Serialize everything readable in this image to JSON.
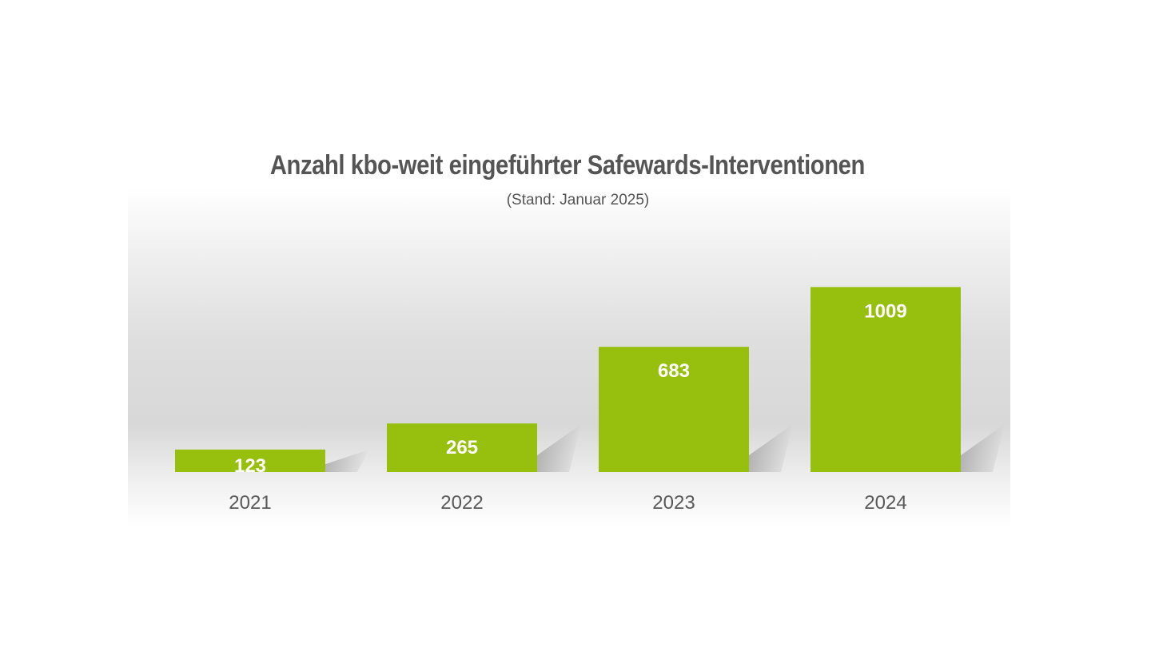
{
  "chart_data": {
    "type": "bar",
    "title": "Anzahl kbo-weit eingeführter Safewards-Interventionen",
    "subtitle": "(Stand: Januar 2025)",
    "categories": [
      "2021",
      "2022",
      "2023",
      "2024"
    ],
    "values": [
      123,
      265,
      683,
      1009
    ],
    "xlabel": "",
    "ylabel": "",
    "ylim": [
      0,
      1150
    ],
    "grid": false,
    "legend": "none",
    "bar_color": "#97c00e",
    "label_color": "#ffffff",
    "text_color": "#555555"
  }
}
